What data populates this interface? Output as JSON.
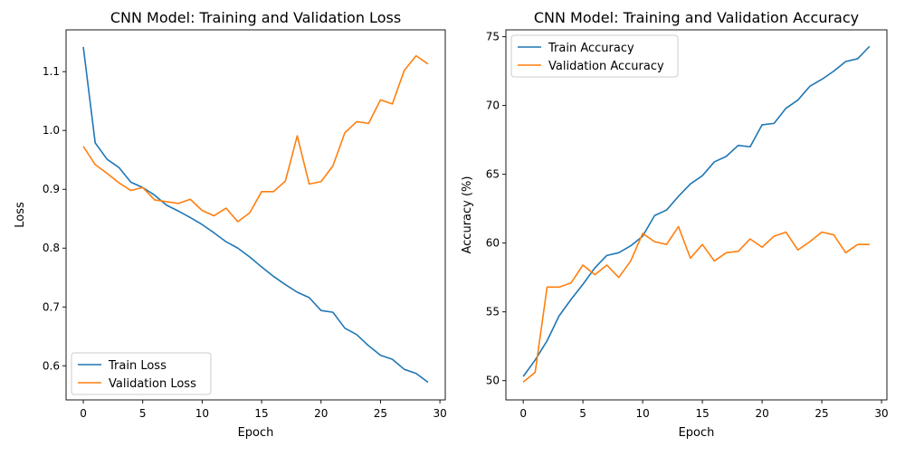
{
  "chart_data": [
    {
      "type": "line",
      "title": "CNN Model: Training and Validation Loss",
      "xlabel": "Epoch",
      "ylabel": "Loss",
      "xlim": [
        -1.45,
        30.45
      ],
      "ylim": [
        0.542,
        1.171
      ],
      "xticks": [
        0,
        5,
        10,
        15,
        20,
        25,
        30
      ],
      "yticks": [
        0.6,
        0.7,
        0.8,
        0.9,
        1.0,
        1.1
      ],
      "ytick_labels": [
        "0.6",
        "0.7",
        "0.8",
        "0.9",
        "1.0",
        "1.1"
      ],
      "grid": false,
      "legend_position": "lower-left",
      "x": [
        0,
        1,
        2,
        3,
        4,
        5,
        6,
        7,
        8,
        9,
        10,
        11,
        12,
        13,
        14,
        15,
        16,
        17,
        18,
        19,
        20,
        21,
        22,
        23,
        24,
        25,
        26,
        27,
        28,
        29
      ],
      "series": [
        {
          "name": "Train Loss",
          "color": "#1f77b4",
          "values": [
            1.142,
            0.979,
            0.951,
            0.937,
            0.912,
            0.903,
            0.89,
            0.873,
            0.863,
            0.852,
            0.84,
            0.826,
            0.811,
            0.8,
            0.785,
            0.768,
            0.752,
            0.738,
            0.725,
            0.716,
            0.694,
            0.691,
            0.664,
            0.653,
            0.634,
            0.618,
            0.611,
            0.594,
            0.587,
            0.572
          ]
        },
        {
          "name": "Validation Loss",
          "color": "#ff7f0e",
          "values": [
            0.973,
            0.942,
            0.927,
            0.911,
            0.898,
            0.903,
            0.882,
            0.879,
            0.876,
            0.883,
            0.864,
            0.855,
            0.868,
            0.845,
            0.86,
            0.896,
            0.896,
            0.914,
            0.991,
            0.909,
            0.913,
            0.94,
            0.996,
            1.015,
            1.012,
            1.052,
            1.045,
            1.102,
            1.127,
            1.113
          ]
        }
      ]
    },
    {
      "type": "line",
      "title": "CNN Model: Training and Validation Accuracy",
      "xlabel": "Epoch",
      "ylabel": "Accuracy (%)",
      "xlim": [
        -1.45,
        30.45
      ],
      "ylim": [
        48.6,
        75.5
      ],
      "xticks": [
        0,
        5,
        10,
        15,
        20,
        25,
        30
      ],
      "yticks": [
        50,
        55,
        60,
        65,
        70,
        75
      ],
      "ytick_labels": [
        "50",
        "55",
        "60",
        "65",
        "70",
        "75"
      ],
      "grid": false,
      "legend_position": "upper-left",
      "x": [
        0,
        1,
        2,
        3,
        4,
        5,
        6,
        7,
        8,
        9,
        10,
        11,
        12,
        13,
        14,
        15,
        16,
        17,
        18,
        19,
        20,
        21,
        22,
        23,
        24,
        25,
        26,
        27,
        28,
        29
      ],
      "series": [
        {
          "name": "Train Accuracy",
          "color": "#1f77b4",
          "values": [
            50.3,
            51.5,
            52.9,
            54.7,
            55.9,
            57.0,
            58.2,
            59.1,
            59.3,
            59.8,
            60.5,
            62.0,
            62.4,
            63.4,
            64.3,
            64.9,
            65.9,
            66.3,
            67.1,
            67.0,
            68.6,
            68.7,
            69.8,
            70.4,
            71.4,
            71.9,
            72.5,
            73.2,
            73.4,
            74.3
          ]
        },
        {
          "name": "Validation Accuracy",
          "color": "#ff7f0e",
          "values": [
            49.9,
            50.6,
            56.8,
            56.8,
            57.1,
            58.4,
            57.7,
            58.4,
            57.5,
            58.7,
            60.7,
            60.1,
            59.9,
            61.2,
            58.9,
            59.9,
            58.7,
            59.3,
            59.4,
            60.3,
            59.7,
            60.5,
            60.8,
            59.5,
            60.1,
            60.8,
            60.6,
            59.3,
            59.9,
            59.9
          ]
        }
      ]
    }
  ]
}
